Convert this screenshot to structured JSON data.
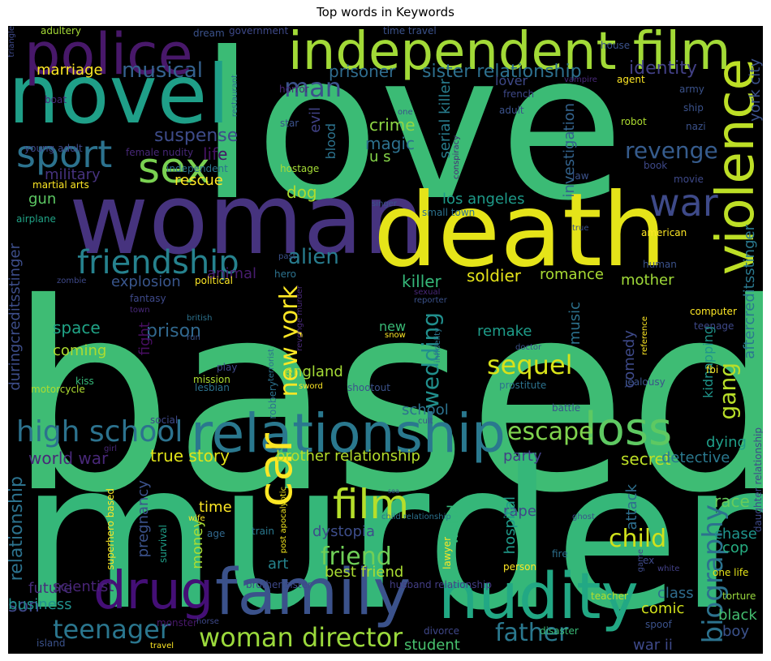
{
  "chart_data": {
    "type": "wordcloud",
    "title": "Top words in Keywords",
    "words": [
      {
        "text": "based",
        "rank": 1,
        "color": "#3ebc74"
      },
      {
        "text": "murder",
        "rank": 2,
        "color": "#35b779"
      },
      {
        "text": "love",
        "rank": 3,
        "color": "#3bbb75"
      },
      {
        "text": "woman",
        "rank": 4,
        "color": "#46337e"
      },
      {
        "text": "death",
        "rank": 5,
        "color": "#e5e419"
      },
      {
        "text": "novel",
        "rank": 6,
        "color": "#1f9f88"
      },
      {
        "text": "independent film",
        "rank": 7,
        "color": "#a2da37"
      },
      {
        "text": "family",
        "rank": 8,
        "color": "#3b528b"
      },
      {
        "text": "nudity",
        "rank": 9,
        "color": "#22a884"
      },
      {
        "text": "relationship",
        "rank": 10,
        "color": "#2a788e"
      },
      {
        "text": "police",
        "rank": 11,
        "color": "#48186a"
      },
      {
        "text": "drug",
        "rank": 12,
        "color": "#440f76"
      },
      {
        "text": "violence",
        "rank": 13,
        "color": "#bddf26"
      },
      {
        "text": "loss",
        "rank": 14,
        "color": "#5ec962"
      },
      {
        "text": "sport",
        "rank": 15,
        "color": "#2c728e"
      },
      {
        "text": "friendship",
        "rank": 16,
        "color": "#26828e"
      },
      {
        "text": "sex",
        "rank": 17,
        "color": "#7ad151"
      },
      {
        "text": "war",
        "rank": 18,
        "color": "#3e4a89"
      },
      {
        "text": "car",
        "rank": 19,
        "color": "#fde725"
      },
      {
        "text": "film",
        "rank": 20,
        "color": "#b5de2b"
      },
      {
        "text": "high school",
        "rank": 21,
        "color": "#2c728e"
      },
      {
        "text": "teenager",
        "rank": 22,
        "color": "#2a768e"
      },
      {
        "text": "woman director",
        "rank": 23,
        "color": "#9bd93c"
      },
      {
        "text": "biography",
        "rank": 24,
        "color": "#2c728e"
      },
      {
        "text": "escape",
        "rank": 25,
        "color": "#7fd34e"
      },
      {
        "text": "revenge",
        "rank": 26,
        "color": "#365c8d"
      },
      {
        "text": "man",
        "rank": 27,
        "color": "#3b528b"
      },
      {
        "text": "musical",
        "rank": 28,
        "color": "#34618d"
      },
      {
        "text": "new york",
        "rank": 29,
        "color": "#fde725"
      },
      {
        "text": "sequel",
        "rank": 30,
        "color": "#d8e219"
      },
      {
        "text": "child",
        "rank": 31,
        "color": "#d0e11c"
      },
      {
        "text": "father",
        "rank": 32,
        "color": "#2a788e"
      },
      {
        "text": "friend",
        "rank": 33,
        "color": "#70cf57"
      },
      {
        "text": "alien",
        "rank": 34,
        "color": "#287c8e"
      },
      {
        "text": "wedding",
        "rank": 35,
        "color": "#218f8d"
      },
      {
        "text": "gang",
        "rank": 36,
        "color": "#b8de29"
      },
      {
        "text": "prison",
        "rank": 37,
        "color": "#31688e"
      },
      {
        "text": "sister relationship",
        "rank": 38,
        "color": "#2d708e"
      },
      {
        "text": "prisoner",
        "rank": 39,
        "color": "#2f6c8e"
      },
      {
        "text": "identity",
        "rank": 40,
        "color": "#424086"
      },
      {
        "text": "suspense",
        "rank": 41,
        "color": "#3e4c8a"
      },
      {
        "text": "life",
        "rank": 42,
        "color": "#471365"
      },
      {
        "text": "marriage",
        "rank": 43,
        "color": "#fde725"
      },
      {
        "text": "aftercreditsstinger",
        "rank": 44,
        "color": "#2a788e"
      },
      {
        "text": "york city",
        "rank": 45,
        "color": "#3b528b"
      },
      {
        "text": "duringcreditsstinger",
        "rank": 46,
        "color": "#3d4e8a"
      },
      {
        "text": "serial killer",
        "rank": 47,
        "color": "#287d8e"
      },
      {
        "text": "crime",
        "rank": 48,
        "color": "#8ed645"
      },
      {
        "text": "magic",
        "rank": 49,
        "color": "#2d718e"
      },
      {
        "text": "u s",
        "rank": 50,
        "color": "#86d549"
      },
      {
        "text": "evil",
        "rank": 51,
        "color": "#414287"
      },
      {
        "text": "blood",
        "rank": 52,
        "color": "#2c738e"
      },
      {
        "text": "dog",
        "rank": 53,
        "color": "#addc30"
      },
      {
        "text": "investigation",
        "rank": 54,
        "color": "#33638d"
      },
      {
        "text": "los angeles",
        "rank": 55,
        "color": "#1e9b8a"
      },
      {
        "text": "killer",
        "rank": 56,
        "color": "#35b779"
      },
      {
        "text": "soldier",
        "rank": 57,
        "color": "#e5e419"
      },
      {
        "text": "romance",
        "rank": 58,
        "color": "#a8db34"
      },
      {
        "text": "mother",
        "rank": 59,
        "color": "#a0da39"
      },
      {
        "text": "animal",
        "rank": 60,
        "color": "#481d6f"
      },
      {
        "text": "explosion",
        "rank": 61,
        "color": "#39568c"
      },
      {
        "text": "space",
        "rank": 62,
        "color": "#20a386"
      },
      {
        "text": "coming",
        "rank": 63,
        "color": "#addc30"
      },
      {
        "text": "fight",
        "rank": 64,
        "color": "#470e61"
      },
      {
        "text": "military",
        "rank": 65,
        "color": "#46327e"
      },
      {
        "text": "rescue",
        "rank": 66,
        "color": "#fde725"
      },
      {
        "text": "gun",
        "rank": 67,
        "color": "#5cc863"
      },
      {
        "text": "music",
        "rank": 68,
        "color": "#2c728e"
      },
      {
        "text": "remake",
        "rank": 69,
        "color": "#1e9c89"
      },
      {
        "text": "new",
        "rank": 70,
        "color": "#3aba76"
      },
      {
        "text": "england",
        "rank": 71,
        "color": "#a5db36"
      },
      {
        "text": "comedy",
        "rank": 72,
        "color": "#3e4a89"
      },
      {
        "text": "kidnapping",
        "rank": 73,
        "color": "#1f958b"
      },
      {
        "text": "school",
        "rank": 74,
        "color": "#2c728e"
      },
      {
        "text": "party",
        "rank": 75,
        "color": "#424086"
      },
      {
        "text": "true story",
        "rank": 76,
        "color": "#e2e418"
      },
      {
        "text": "brother relationship",
        "rank": 77,
        "color": "#b5de2b"
      },
      {
        "text": "world war",
        "rank": 78,
        "color": "#482878"
      },
      {
        "text": "secret",
        "rank": 79,
        "color": "#bddf26"
      },
      {
        "text": "detective",
        "rank": 80,
        "color": "#2a788e"
      },
      {
        "text": "dying",
        "rank": 81,
        "color": "#1f9e89"
      },
      {
        "text": "relationship",
        "rank": 82,
        "color": "#2c728e"
      },
      {
        "text": "son",
        "rank": 83,
        "color": "#3e4989"
      },
      {
        "text": "time",
        "rank": 84,
        "color": "#fde725"
      },
      {
        "text": "money",
        "rank": 85,
        "color": "#a8db34"
      },
      {
        "text": "pregnancy",
        "rank": 86,
        "color": "#3b528b"
      },
      {
        "text": "dystopia",
        "rank": 87,
        "color": "#3d4d8a"
      },
      {
        "text": "world",
        "rank": 88,
        "color": "#35b779"
      },
      {
        "text": "rape",
        "rank": 89,
        "color": "#3f4889"
      },
      {
        "text": "attack",
        "rank": 90,
        "color": "#2e6f8e"
      },
      {
        "text": "race",
        "rank": 91,
        "color": "#67cc5c"
      },
      {
        "text": "chase",
        "rank": 92,
        "color": "#1f948c"
      },
      {
        "text": "cop",
        "rank": 93,
        "color": "#26ad81"
      },
      {
        "text": "hospital",
        "rank": 94,
        "color": "#1f9a8a"
      },
      {
        "text": "art",
        "rank": 95,
        "color": "#25848e"
      },
      {
        "text": "best friend",
        "rank": 96,
        "color": "#aadc32"
      },
      {
        "text": "scientist",
        "rank": 97,
        "color": "#482475"
      },
      {
        "text": "future",
        "rank": 98,
        "color": "#472d7b"
      },
      {
        "text": "business",
        "rank": 99,
        "color": "#21918c"
      },
      {
        "text": "class",
        "rank": 100,
        "color": "#2f6c8e"
      },
      {
        "text": "comic",
        "rank": 101,
        "color": "#d2e21b"
      },
      {
        "text": "black",
        "rank": 102,
        "color": "#44bf70"
      },
      {
        "text": "boy",
        "rank": 103,
        "color": "#3b528b"
      },
      {
        "text": "student",
        "rank": 104,
        "color": "#48c16e"
      },
      {
        "text": "war ii",
        "rank": 105,
        "color": "#3e4989"
      },
      {
        "text": "one life",
        "rank": 106,
        "color": "#e5e419"
      },
      {
        "text": "torture",
        "rank": 107,
        "color": "#98d83e"
      },
      {
        "text": "teacher",
        "rank": 108,
        "color": "#b5de2b"
      },
      {
        "text": "ex",
        "rank": 109,
        "color": "#3e4a89"
      },
      {
        "text": "white",
        "rank": 110,
        "color": "#424086"
      },
      {
        "text": "spoof",
        "rank": 111,
        "color": "#3b528b"
      },
      {
        "text": "husband relationship",
        "rank": 112,
        "color": "#433e85"
      },
      {
        "text": "brother sister",
        "rank": 113,
        "color": "#3e4989"
      },
      {
        "text": "divorce",
        "rank": 114,
        "color": "#3f4788"
      },
      {
        "text": "disaster",
        "rank": 115,
        "color": "#3aba76"
      },
      {
        "text": "lawyer",
        "rank": 116,
        "color": "#fde725"
      },
      {
        "text": "person",
        "rank": 117,
        "color": "#fde725"
      },
      {
        "text": "ghost",
        "rank": 118,
        "color": "#3b528b"
      },
      {
        "text": "fire",
        "rank": 119,
        "color": "#2d708e"
      },
      {
        "text": "game",
        "rank": 120,
        "color": "#3e4a89"
      },
      {
        "text": "daughter relationship",
        "rank": 121,
        "color": "#3e4989"
      },
      {
        "text": "child relationship",
        "rank": 122,
        "color": "#2c728e"
      },
      {
        "text": "post apocalyptic",
        "rank": 123,
        "color": "#f1e51d"
      },
      {
        "text": "train",
        "rank": 124,
        "color": "#2a788e"
      },
      {
        "text": "age",
        "rank": 125,
        "color": "#31688e"
      },
      {
        "text": "wife",
        "rank": 126,
        "color": "#fde725"
      },
      {
        "text": "survival",
        "rank": 127,
        "color": "#1f9f88"
      },
      {
        "text": "superhero based",
        "rank": 128,
        "color": "#fde725"
      },
      {
        "text": "monster",
        "rank": 129,
        "color": "#48186a"
      },
      {
        "text": "island",
        "rank": 130,
        "color": "#3b528b"
      },
      {
        "text": "travel",
        "rank": 131,
        "color": "#fde725"
      },
      {
        "text": "horse",
        "rank": 132,
        "color": "#3e4989"
      },
      {
        "text": "girl",
        "rank": 133,
        "color": "#482878"
      },
      {
        "text": "social",
        "rank": 134,
        "color": "#3e4989"
      },
      {
        "text": "motorcycle",
        "rank": 135,
        "color": "#addc30"
      },
      {
        "text": "kiss",
        "rank": 136,
        "color": "#35b779"
      },
      {
        "text": "play",
        "rank": 137,
        "color": "#3e4989"
      },
      {
        "text": "mission",
        "rank": 138,
        "color": "#addc30"
      },
      {
        "text": "lesbian",
        "rank": 139,
        "color": "#2c728e"
      },
      {
        "text": "terrorist",
        "rank": 140,
        "color": "#2c728e"
      },
      {
        "text": "sword",
        "rank": 141,
        "color": "#fde725"
      },
      {
        "text": "shootout",
        "rank": 142,
        "color": "#3b528b"
      },
      {
        "text": "robbery",
        "rank": 143,
        "color": "#2c728e"
      },
      {
        "text": "cult",
        "rank": 144,
        "color": "#3b528b"
      },
      {
        "text": "battle",
        "rank": 145,
        "color": "#3b528b"
      },
      {
        "text": "prostitute",
        "rank": 146,
        "color": "#2c728e"
      },
      {
        "text": "jealousy",
        "rank": 147,
        "color": "#3b528b"
      },
      {
        "text": "fbi",
        "rank": 148,
        "color": "#fde725"
      },
      {
        "text": "teenage",
        "rank": 149,
        "color": "#3e4989"
      },
      {
        "text": "computer",
        "rank": 150,
        "color": "#fde725"
      },
      {
        "text": "reference",
        "rank": 151,
        "color": "#fde725"
      },
      {
        "text": "doctor",
        "rank": 152,
        "color": "#3b528b"
      },
      {
        "text": "infidelity",
        "rank": 153,
        "color": "#2c728e"
      },
      {
        "text": "snow",
        "rank": 154,
        "color": "#fde725"
      },
      {
        "text": "reporter",
        "rank": 155,
        "color": "#3b528b"
      },
      {
        "text": "sexual",
        "rank": 156,
        "color": "#482878"
      },
      {
        "text": "revenge murder",
        "rank": 157,
        "color": "#482878"
      },
      {
        "text": "british",
        "rank": 158,
        "color": "#2c728e"
      },
      {
        "text": "run",
        "rank": 159,
        "color": "#3b528b"
      },
      {
        "text": "town",
        "rank": 160,
        "color": "#482878"
      },
      {
        "text": "fantasy",
        "rank": 161,
        "color": "#3e4989"
      },
      {
        "text": "zombie",
        "rank": 162,
        "color": "#3e4989"
      },
      {
        "text": "political",
        "rank": 163,
        "color": "#fde725"
      },
      {
        "text": "hero",
        "rank": 164,
        "color": "#2c728e"
      },
      {
        "text": "past",
        "rank": 165,
        "color": "#3b528b"
      },
      {
        "text": "human",
        "rank": 166,
        "color": "#3b528b"
      },
      {
        "text": "american",
        "rank": 167,
        "color": "#fde725"
      },
      {
        "text": "true",
        "rank": 168,
        "color": "#3b528b"
      },
      {
        "text": "singer",
        "rank": 169,
        "color": "#3b528b"
      },
      {
        "text": "small town",
        "rank": 170,
        "color": "#2c728e"
      },
      {
        "text": "law",
        "rank": 171,
        "color": "#3b528b"
      },
      {
        "text": "movie",
        "rank": 172,
        "color": "#3e4989"
      },
      {
        "text": "book",
        "rank": 173,
        "color": "#3e4989"
      },
      {
        "text": "conspiracy",
        "rank": 174,
        "color": "#482878"
      },
      {
        "text": "airplane",
        "rank": 175,
        "color": "#20a386"
      },
      {
        "text": "martial arts",
        "rank": 176,
        "color": "#fde725"
      },
      {
        "text": "independent",
        "rank": 177,
        "color": "#2c728e"
      },
      {
        "text": "female nudity",
        "rank": 178,
        "color": "#482878"
      },
      {
        "text": "young adult",
        "rank": 179,
        "color": "#3e4989"
      },
      {
        "text": "hostage",
        "rank": 180,
        "color": "#a5db36"
      },
      {
        "text": "star",
        "rank": 181,
        "color": "#3b528b"
      },
      {
        "text": "robot",
        "rank": 182,
        "color": "#addc30"
      },
      {
        "text": "nazi",
        "rank": 183,
        "color": "#3b528b"
      },
      {
        "text": "ship",
        "rank": 184,
        "color": "#3b528b"
      },
      {
        "text": "adult",
        "rank": 185,
        "color": "#3b528b"
      },
      {
        "text": "french",
        "rank": 186,
        "color": "#3e4989"
      },
      {
        "text": "vampire",
        "rank": 187,
        "color": "#482878"
      },
      {
        "text": "army",
        "rank": 188,
        "color": "#3b528b"
      },
      {
        "text": "agent",
        "rank": 189,
        "color": "#fde725"
      },
      {
        "text": "house",
        "rank": 190,
        "color": "#3b528b"
      },
      {
        "text": "time travel",
        "rank": 191,
        "color": "#3b528b"
      },
      {
        "text": "one",
        "rank": 192,
        "color": "#3b528b"
      },
      {
        "text": "restaurant",
        "rank": 193,
        "color": "#2c728e"
      },
      {
        "text": "horror",
        "rank": 194,
        "color": "#482878"
      },
      {
        "text": "lover",
        "rank": 195,
        "color": "#3e4989"
      },
      {
        "text": "government",
        "rank": 196,
        "color": "#3e4989"
      },
      {
        "text": "dream",
        "rank": 197,
        "color": "#3b528b"
      },
      {
        "text": "adultery",
        "rank": 198,
        "color": "#a5db36"
      },
      {
        "text": "boat",
        "rank": 199,
        "color": "#482878"
      },
      {
        "text": "triangle",
        "rank": 200,
        "color": "#3e4989"
      },
      {
        "text": "sea",
        "rank": 201,
        "color": "#3b528b"
      }
    ]
  }
}
